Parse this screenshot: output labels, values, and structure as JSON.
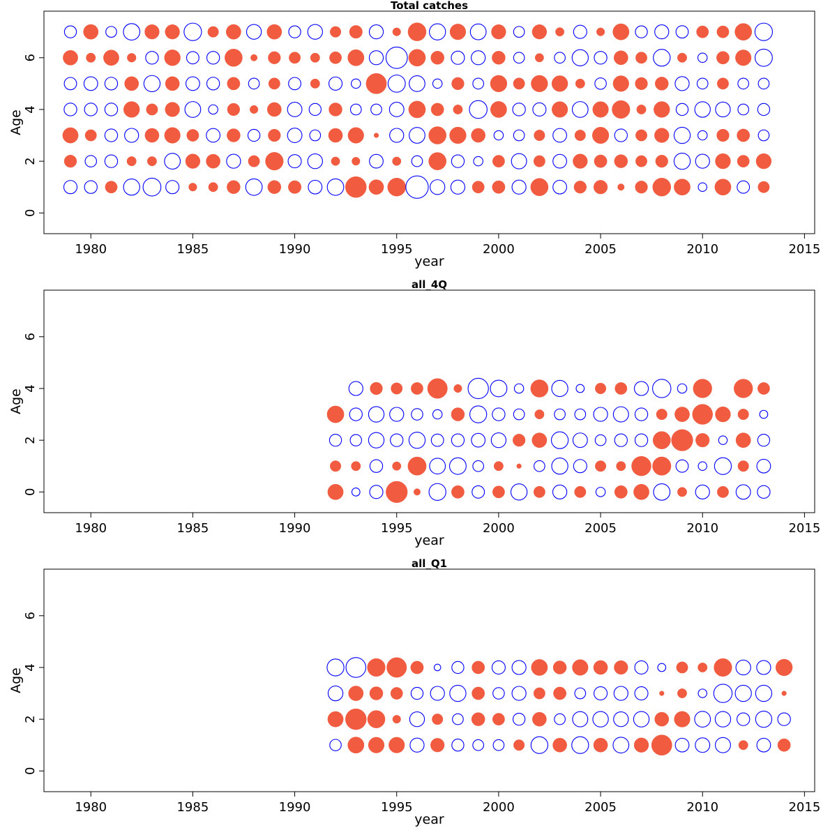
{
  "chart_data": [
    {
      "type": "scatter",
      "subtype": "bubble",
      "title": "Total catches",
      "xlabel": "year",
      "ylabel": "Age",
      "xlim": [
        1977.7,
        2015.5
      ],
      "ylim": [
        -0.8,
        7.8
      ],
      "xticks": [
        1980,
        1985,
        1990,
        1995,
        2000,
        2005,
        2010,
        2015
      ],
      "yticks": [
        0,
        2,
        4,
        6
      ],
      "grid": false,
      "years": [
        1979,
        1980,
        1981,
        1982,
        1983,
        1984,
        1985,
        1986,
        1987,
        1988,
        1989,
        1990,
        1991,
        1992,
        1993,
        1994,
        1995,
        1996,
        1997,
        1998,
        1999,
        2000,
        2001,
        2002,
        2003,
        2004,
        2005,
        2006,
        2007,
        2008,
        2009,
        2010,
        2011,
        2012,
        2013
      ],
      "ages": [
        1,
        2,
        3,
        4,
        5,
        6,
        7
      ],
      "values": [
        [
          -0.4,
          0.35,
          0.55,
          -0.37,
          -0.35,
          0.5,
          -0.33
        ],
        [
          -0.37,
          -0.3,
          0.3,
          -0.37,
          -0.43,
          0.2,
          0.5
        ],
        [
          0.33,
          -0.37,
          -0.37,
          -0.37,
          -0.37,
          0.55,
          -0.27
        ],
        [
          -0.6,
          0.2,
          -0.45,
          0.58,
          0.45,
          0.18,
          -0.62
        ],
        [
          -0.73,
          0.2,
          0.45,
          0.3,
          -0.6,
          -0.37,
          0.48
        ],
        [
          -0.4,
          -0.57,
          0.57,
          0.48,
          0.45,
          0.58,
          0.48
        ],
        [
          0.15,
          0.48,
          0.33,
          -0.57,
          -0.43,
          -0.35,
          -0.7
        ],
        [
          0.2,
          0.45,
          -0.43,
          -0.2,
          -0.37,
          -0.37,
          0.27
        ],
        [
          0.4,
          -0.45,
          0.4,
          0.35,
          0.37,
          0.7,
          0.5
        ],
        [
          -0.62,
          0.3,
          -0.33,
          0.15,
          -0.27,
          0.1,
          -0.5
        ],
        [
          0.4,
          0.73,
          0.35,
          0.45,
          0.3,
          0.35,
          0.5
        ],
        [
          0.38,
          -0.4,
          -0.48,
          -0.48,
          -0.35,
          0.3,
          -0.33
        ],
        [
          -0.43,
          -0.5,
          -0.27,
          -0.33,
          0.2,
          0.2,
          -0.5
        ],
        [
          -0.62,
          0.17,
          0.45,
          0.4,
          -0.4,
          0.33,
          0.27
        ],
        [
          1.0,
          0.15,
          0.57,
          -0.27,
          -0.2,
          0.6,
          0.38
        ],
        [
          0.5,
          -0.43,
          0.05,
          -0.27,
          0.95,
          -0.45,
          -0.45
        ],
        [
          0.75,
          0.17,
          -0.45,
          -0.48,
          -0.68,
          -1.05,
          0.15
        ],
        [
          -1.15,
          -0.27,
          -0.57,
          0.65,
          -0.57,
          0.65,
          0.75
        ],
        [
          -0.5,
          0.7,
          0.7,
          0.37,
          -0.2,
          0.4,
          -0.6
        ],
        [
          -0.45,
          -0.37,
          0.63,
          0.2,
          0.35,
          -0.4,
          0.57
        ],
        [
          0.33,
          -0.2,
          0.45,
          -0.72,
          -0.27,
          -0.45,
          -0.57
        ],
        [
          0.37,
          0.33,
          -0.2,
          0.6,
          0.63,
          0.4,
          0.48
        ],
        [
          -0.45,
          -0.53,
          -0.27,
          -0.37,
          0.3,
          -0.27,
          -0.27
        ],
        [
          0.7,
          0.3,
          0.27,
          -0.4,
          0.63,
          0.17,
          0.48
        ],
        [
          -0.43,
          -0.43,
          -0.43,
          0.57,
          0.58,
          -0.27,
          0.17
        ],
        [
          0.35,
          0.48,
          0.27,
          -0.57,
          0.2,
          -0.6,
          -0.4
        ],
        [
          0.43,
          0.37,
          0.62,
          0.57,
          -0.3,
          -0.37,
          0.15
        ],
        [
          0.1,
          0.4,
          -0.37,
          0.73,
          0.57,
          0.45,
          0.6
        ],
        [
          0.35,
          0.3,
          0.3,
          0.2,
          0.35,
          0.3,
          -0.33
        ],
        [
          0.75,
          0.35,
          0.48,
          0.58,
          0.4,
          -0.65,
          -0.45
        ],
        [
          0.6,
          -0.6,
          -0.6,
          -0.33,
          -0.45,
          0.2,
          -0.35
        ],
        [
          -0.17,
          -0.45,
          -0.2,
          -0.55,
          -0.27,
          -0.2,
          0.33
        ],
        [
          0.6,
          0.53,
          0.35,
          -0.5,
          0.3,
          0.37,
          0.33
        ],
        [
          -0.35,
          0.33,
          0.37,
          -0.27,
          -0.27,
          0.57,
          0.65
        ],
        [
          0.3,
          0.53,
          -0.27,
          -0.33,
          -0.27,
          -0.68,
          -0.7
        ]
      ],
      "positive_color": "#f15b40",
      "negative_color": "#0000ff"
    },
    {
      "type": "scatter",
      "subtype": "bubble",
      "title": "all_4Q",
      "xlabel": "year",
      "ylabel": "Age",
      "xlim": [
        1977.7,
        2015.5
      ],
      "ylim": [
        -0.8,
        7.8
      ],
      "xticks": [
        1980,
        1985,
        1990,
        1995,
        2000,
        2005,
        2010,
        2015
      ],
      "yticks": [
        0,
        2,
        4,
        6
      ],
      "grid": false,
      "years": [
        1992,
        1993,
        1994,
        1995,
        1996,
        1997,
        1998,
        1999,
        2000,
        2001,
        2002,
        2003,
        2004,
        2005,
        2006,
        2007,
        2008,
        2009,
        2010,
        2011,
        2012,
        2013
      ],
      "ages": [
        0,
        1,
        2,
        3,
        4
      ],
      "values": [
        [
          0.55,
          0.27,
          -0.33,
          0.65,
          null
        ],
        [
          -0.15,
          0.2,
          -0.3,
          -0.37,
          -0.45
        ],
        [
          -0.4,
          -0.37,
          -0.55,
          -0.55,
          0.35
        ],
        [
          1.05,
          0.17,
          -0.37,
          -0.45,
          0.3
        ],
        [
          0.1,
          0.77,
          -0.6,
          -0.3,
          0.33
        ],
        [
          -0.65,
          -0.57,
          -0.35,
          -0.2,
          0.9
        ],
        [
          0.37,
          -0.63,
          -0.37,
          0.4,
          0.15
        ],
        [
          -0.35,
          -0.27,
          -0.43,
          -0.65,
          -0.95
        ],
        [
          0.33,
          0.2,
          -0.5,
          -0.37,
          -0.63
        ],
        [
          -0.6,
          0.05,
          0.35,
          -0.27,
          -0.2
        ],
        [
          0.3,
          -0.27,
          0.5,
          0.2,
          0.7
        ],
        [
          -0.45,
          -0.6,
          -0.65,
          -0.27,
          -0.6
        ],
        [
          0.3,
          -0.4,
          -0.48,
          -0.27,
          -0.15
        ],
        [
          -0.2,
          0.27,
          -0.27,
          -0.45,
          0.27
        ],
        [
          0.37,
          0.2,
          -0.37,
          -0.53,
          0.33
        ],
        [
          0.55,
          0.87,
          -0.37,
          -0.37,
          -0.45
        ],
        [
          -0.62,
          0.78,
          0.7,
          0.27,
          -0.77
        ],
        [
          0.2,
          -0.35,
          1.05,
          0.5,
          -0.2
        ],
        [
          -0.45,
          -0.17,
          0.43,
          0.93,
          0.8
        ],
        [
          0.3,
          -0.65,
          -0.17,
          0.53,
          null
        ],
        [
          -0.48,
          0.27,
          0.5,
          0.27,
          0.8
        ],
        [
          -0.37,
          -0.43,
          -0.33,
          -0.15,
          0.33
        ]
      ],
      "positive_color": "#f15b40",
      "negative_color": "#0000ff"
    },
    {
      "type": "scatter",
      "subtype": "bubble",
      "title": "all_Q1",
      "xlabel": "year",
      "ylabel": "Age",
      "xlim": [
        1977.7,
        2015.5
      ],
      "ylim": [
        -0.8,
        7.8
      ],
      "xticks": [
        1980,
        1985,
        1990,
        1995,
        2000,
        2005,
        2010,
        2015
      ],
      "yticks": [
        0,
        2,
        4,
        6
      ],
      "grid": false,
      "years": [
        1992,
        1993,
        1994,
        1995,
        1996,
        1997,
        1998,
        1999,
        2000,
        2001,
        2002,
        2003,
        2004,
        2005,
        2006,
        2007,
        2008,
        2009,
        2010,
        2011,
        2012,
        2013,
        2014
      ],
      "ages": [
        1,
        2,
        3,
        4
      ],
      "values": [
        [
          -0.3,
          0.55,
          -0.5,
          -0.65
        ],
        [
          0.6,
          1.0,
          0.5,
          -0.9
        ],
        [
          0.57,
          0.7,
          0.4,
          0.73
        ],
        [
          0.57,
          0.15,
          0.33,
          0.9
        ],
        [
          -0.45,
          -0.5,
          -0.33,
          0.37
        ],
        [
          0.43,
          0.27,
          -0.45,
          -0.1
        ],
        [
          -0.33,
          -0.27,
          -0.6,
          -0.33
        ],
        [
          -0.27,
          0.4,
          0.37,
          0.37
        ],
        [
          -0.27,
          0.33,
          -0.3,
          -0.4
        ],
        [
          0.27,
          -0.33,
          -0.45,
          -0.45
        ],
        [
          -0.65,
          0.45,
          0.3,
          0.6
        ],
        [
          0.45,
          -0.27,
          0.37,
          0.4
        ],
        [
          -0.65,
          -0.53,
          -0.27,
          0.57
        ],
        [
          0.45,
          -0.55,
          -0.4,
          0.45
        ],
        [
          -0.57,
          -0.5,
          -0.45,
          0.43
        ],
        [
          0.48,
          -0.55,
          -0.4,
          -0.4
        ],
        [
          0.95,
          0.45,
          0.05,
          -0.15
        ],
        [
          -0.43,
          0.57,
          0.2,
          0.3
        ],
        [
          -0.48,
          -0.57,
          -0.17,
          0.2
        ],
        [
          -0.53,
          -0.55,
          -0.77,
          0.73
        ],
        [
          0.2,
          -0.37,
          -0.6,
          -0.5
        ],
        [
          -0.43,
          -0.6,
          -0.6,
          -0.45
        ],
        [
          0.37,
          -0.37,
          0.05,
          0.63
        ]
      ],
      "positive_color": "#f15b40",
      "negative_color": "#0000ff"
    }
  ]
}
